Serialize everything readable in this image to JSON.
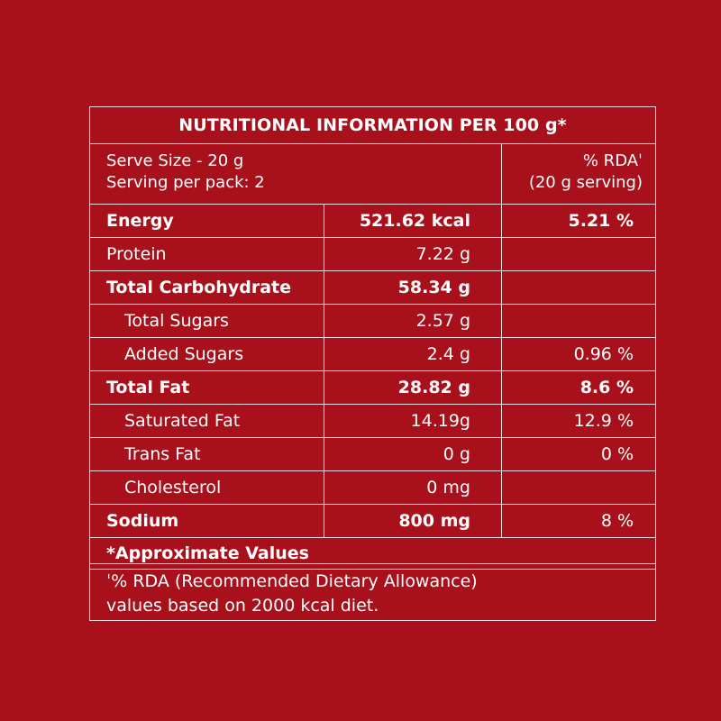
{
  "table": {
    "title": "NUTRITIONAL INFORMATION PER 100 g*",
    "serve_size": "Serve Size - 20 g",
    "serving_per_pack": "Serving per pack: 2",
    "rda_header": "% RDAˈ",
    "rda_serving": "(20 g serving)",
    "rows": [
      {
        "name": "Energy",
        "value": "521.62 kcal",
        "rda": "5.21 %"
      },
      {
        "name": "Protein",
        "value": "7.22 g",
        "rda": ""
      },
      {
        "name": "Total Carbohydrate",
        "value": "58.34 g",
        "rda": ""
      },
      {
        "name": "Total Sugars",
        "value": "2.57 g",
        "rda": ""
      },
      {
        "name": "Added Sugars",
        "value": "2.4 g",
        "rda": "0.96 %"
      },
      {
        "name": "Total Fat",
        "value": "28.82 g",
        "rda": "8.6 %"
      },
      {
        "name": "Saturated Fat",
        "value": "14.19g",
        "rda": "12.9 %"
      },
      {
        "name": "Trans Fat",
        "value": "0 g",
        "rda": "0 %"
      },
      {
        "name": "Cholesterol",
        "value": "0 mg",
        "rda": ""
      },
      {
        "name": "Sodium",
        "value": "800 mg",
        "rda": "8 %"
      }
    ],
    "approx_note": "*Approximate Values"
  },
  "footnote": {
    "line1": "ˈ% RDA (Recommended Dietary Allowance)",
    "line2": "values based on 2000 kcal diet."
  }
}
